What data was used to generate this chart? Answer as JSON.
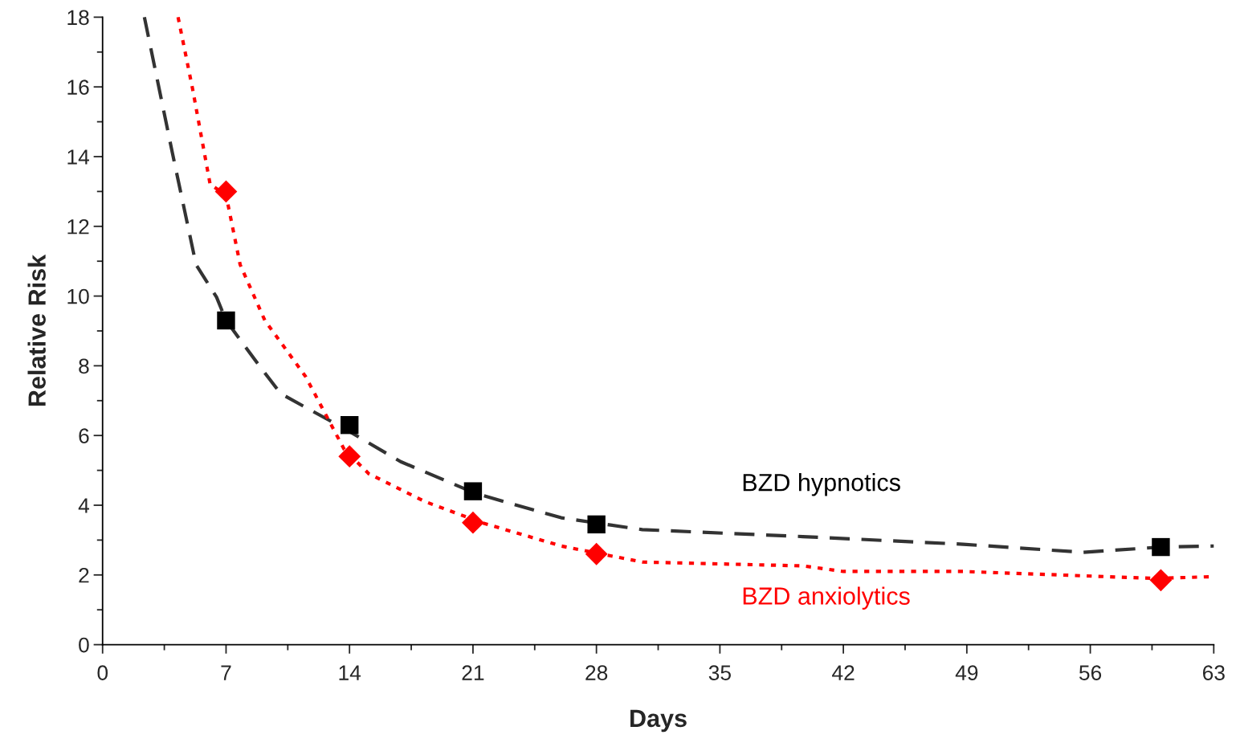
{
  "chart_data": {
    "type": "line",
    "xlabel": "Days",
    "ylabel": "Relative Risk",
    "xlim": [
      0,
      63
    ],
    "xticks": [
      0,
      7,
      14,
      21,
      28,
      35,
      42,
      49,
      56,
      63
    ],
    "ylim": [
      0,
      18
    ],
    "yticks": [
      0,
      2,
      4,
      6,
      8,
      10,
      12,
      14,
      16,
      18
    ],
    "grid": false,
    "legend": false,
    "series": [
      {
        "color": "#333333",
        "line_style": "dashed",
        "marker": "none",
        "x": [
          2.37,
          3.96,
          5.3,
          6.46,
          7,
          8.74,
          10.1,
          13.7,
          16.9,
          21.2,
          26,
          30.6,
          39.7,
          48.8,
          55.6,
          60,
          63
        ],
        "values": [
          18,
          14.1,
          10.9,
          9.97,
          9.3,
          8.1,
          7.2,
          6.2,
          5.25,
          4.33,
          3.64,
          3.3,
          3.1,
          2.88,
          2.65,
          2.8,
          2.83
        ]
      },
      {
        "color": "#ff0000",
        "line_style": "dotted",
        "marker": "none",
        "x": [
          4.28,
          5.1,
          6.1,
          7,
          7.8,
          9.2,
          11.5,
          13.7,
          15.1,
          18.3,
          21.5,
          26,
          30.6,
          39.7,
          42,
          48.8,
          59.7,
          62.9
        ],
        "values": [
          18,
          15.95,
          13.2,
          12.9,
          10.9,
          9.3,
          7.7,
          5.6,
          4.9,
          4.1,
          3.5,
          2.83,
          2.37,
          2.26,
          2.1,
          2.1,
          1.9,
          1.95
        ]
      },
      {
        "type": "scatter",
        "name": "BZD hypnotics",
        "color": "#000000",
        "marker": "square",
        "x": [
          7,
          14,
          21,
          28,
          60
        ],
        "values": [
          9.3,
          6.3,
          4.4,
          3.45,
          2.8
        ]
      },
      {
        "type": "scatter",
        "name": "BZD anxiolytics",
        "color": "#ff0000",
        "marker": "diamond",
        "x": [
          7,
          14,
          21,
          28,
          60
        ],
        "values": [
          13.0,
          5.4,
          3.5,
          2.6,
          1.85
        ]
      }
    ]
  }
}
